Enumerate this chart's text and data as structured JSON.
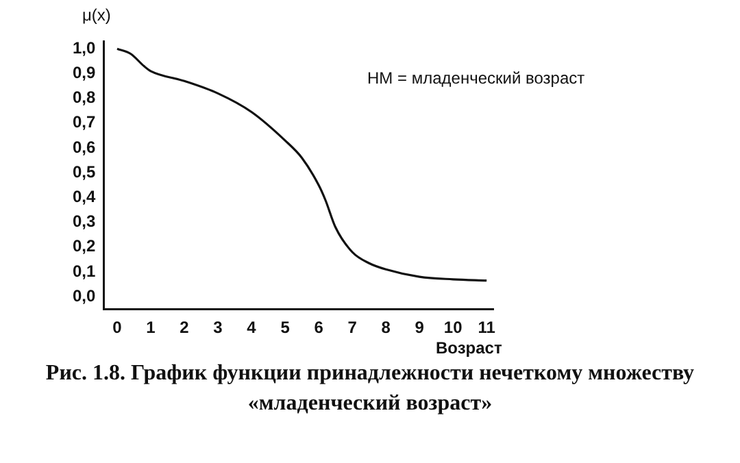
{
  "chart_data": {
    "type": "line",
    "title": "Рис. 1.8. График функции принадлежности нечеткому множеству «младенческий возраст»",
    "ylabel": "μ(x)",
    "xlabel": "Возраст",
    "annotations": [
      "НМ = младенческий возраст"
    ],
    "x": [
      0,
      0.4,
      0.8,
      1,
      2,
      3,
      4,
      5,
      5.5,
      6,
      6.2,
      6.5,
      7,
      7.5,
      8,
      9,
      10,
      11
    ],
    "series": [
      {
        "color": "#111111",
        "values": [
          1.0,
          0.98,
          0.93,
          0.91,
          0.87,
          0.82,
          0.745,
          0.63,
          0.56,
          0.45,
          0.39,
          0.28,
          0.18,
          0.135,
          0.11,
          0.08,
          0.07,
          0.065
        ]
      }
    ],
    "xlim": [
      -0.4,
      11.2
    ],
    "ylim": [
      -0.05,
      1.03
    ],
    "xticks": [
      0,
      1,
      2,
      3,
      4,
      5,
      6,
      7,
      8,
      9,
      10,
      11
    ],
    "yticks": [
      {
        "value": 0,
        "label": "0,0"
      },
      {
        "value": 0.1,
        "label": "0,1"
      },
      {
        "value": 0.2,
        "label": "0,2"
      },
      {
        "value": 0.3,
        "label": "0,3"
      },
      {
        "value": 0.4,
        "label": "0,4"
      },
      {
        "value": 0.5,
        "label": "0,5"
      },
      {
        "value": 0.6,
        "label": "0,6"
      },
      {
        "value": 0.7,
        "label": "0,7"
      },
      {
        "value": 0.8,
        "label": "0,8"
      },
      {
        "value": 0.9,
        "label": "0,9"
      },
      {
        "value": 1.0,
        "label": "1,0"
      }
    ],
    "grid": false,
    "legend": false,
    "marker": "none",
    "line_style": "solid"
  }
}
